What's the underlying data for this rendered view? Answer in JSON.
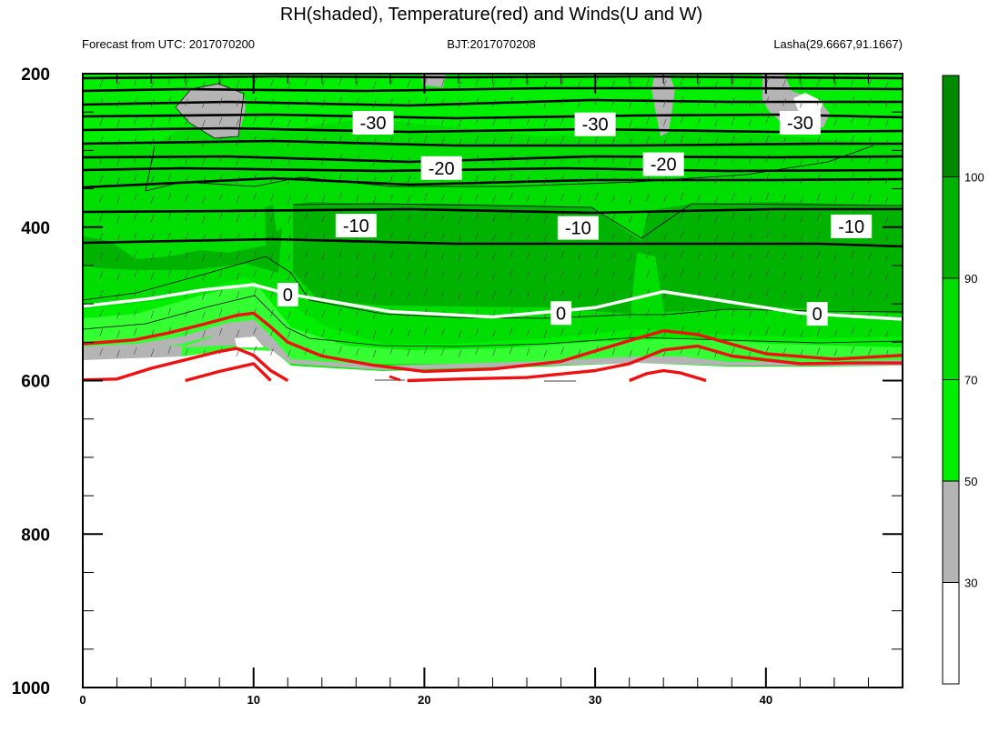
{
  "header": {
    "title": "RH(shaded), Temperature(red) and Winds(U and W)",
    "left": "Forecast from UTC: 2017070200",
    "center": "BJT:2017070208",
    "right": "Lasha(29.6667,91.1667)"
  },
  "chart_data": {
    "type": "contour",
    "xlim": [
      0,
      48
    ],
    "ylim": [
      1000,
      200
    ],
    "x_ticks": [
      0,
      10,
      20,
      30,
      40
    ],
    "y_ticks": [
      200,
      400,
      600,
      800,
      1000
    ],
    "colorbar": {
      "ticks": [
        30,
        50,
        70,
        90,
        100
      ],
      "colors": [
        "#ffffff",
        "#b4b4b4",
        "#00ee00",
        "#00dd00",
        "#00b300",
        "#008a00"
      ]
    },
    "temperature_contour_labels": [
      {
        "text": "-30",
        "x": 17,
        "y": 264
      },
      {
        "text": "-30",
        "x": 30,
        "y": 266
      },
      {
        "text": "-30",
        "x": 42,
        "y": 264
      },
      {
        "text": "-20",
        "x": 21,
        "y": 323
      },
      {
        "text": "-20",
        "x": 34,
        "y": 318
      },
      {
        "text": "-10",
        "x": 16,
        "y": 398
      },
      {
        "text": "-10",
        "x": 29,
        "y": 401
      },
      {
        "text": "-10",
        "x": 45,
        "y": 399
      },
      {
        "text": "0",
        "x": 12,
        "y": 488
      },
      {
        "text": "0",
        "x": 28,
        "y": 512
      },
      {
        "text": "0",
        "x": 43,
        "y": 513
      }
    ],
    "zero_isotherm": {
      "x": [
        0,
        4,
        7,
        10,
        12,
        18,
        24,
        30,
        34,
        38,
        42,
        48
      ],
      "p": [
        503,
        493,
        482,
        475,
        487,
        510,
        517,
        505,
        484,
        498,
        512,
        520
      ]
    },
    "red_contours": [
      {
        "x": [
          0,
          3,
          5,
          7,
          9,
          10,
          11,
          12,
          14,
          17,
          20,
          24,
          28,
          32,
          34,
          36,
          40,
          44,
          48
        ],
        "p": [
          552,
          547,
          538,
          527,
          515,
          512,
          530,
          550,
          568,
          580,
          588,
          585,
          575,
          548,
          535,
          540,
          565,
          572,
          567
        ]
      },
      {
        "x": [
          0,
          2,
          4,
          6,
          8,
          9,
          10,
          11,
          12
        ],
        "p": [
          599,
          598,
          584,
          573,
          562,
          558,
          567,
          587,
          600
        ]
      },
      {
        "x": [
          19,
          22,
          26,
          30,
          32,
          34,
          36,
          38,
          42,
          45,
          48
        ],
        "p": [
          600,
          598,
          596,
          587,
          578,
          560,
          555,
          568,
          578,
          577,
          577
        ]
      },
      {
        "x": [
          6,
          8,
          10,
          11
        ],
        "p": [
          600,
          588,
          578,
          600
        ]
      },
      {
        "x": [
          32,
          33,
          34,
          35,
          36.5
        ],
        "p": [
          600,
          591,
          587,
          590,
          600
        ]
      }
    ]
  }
}
